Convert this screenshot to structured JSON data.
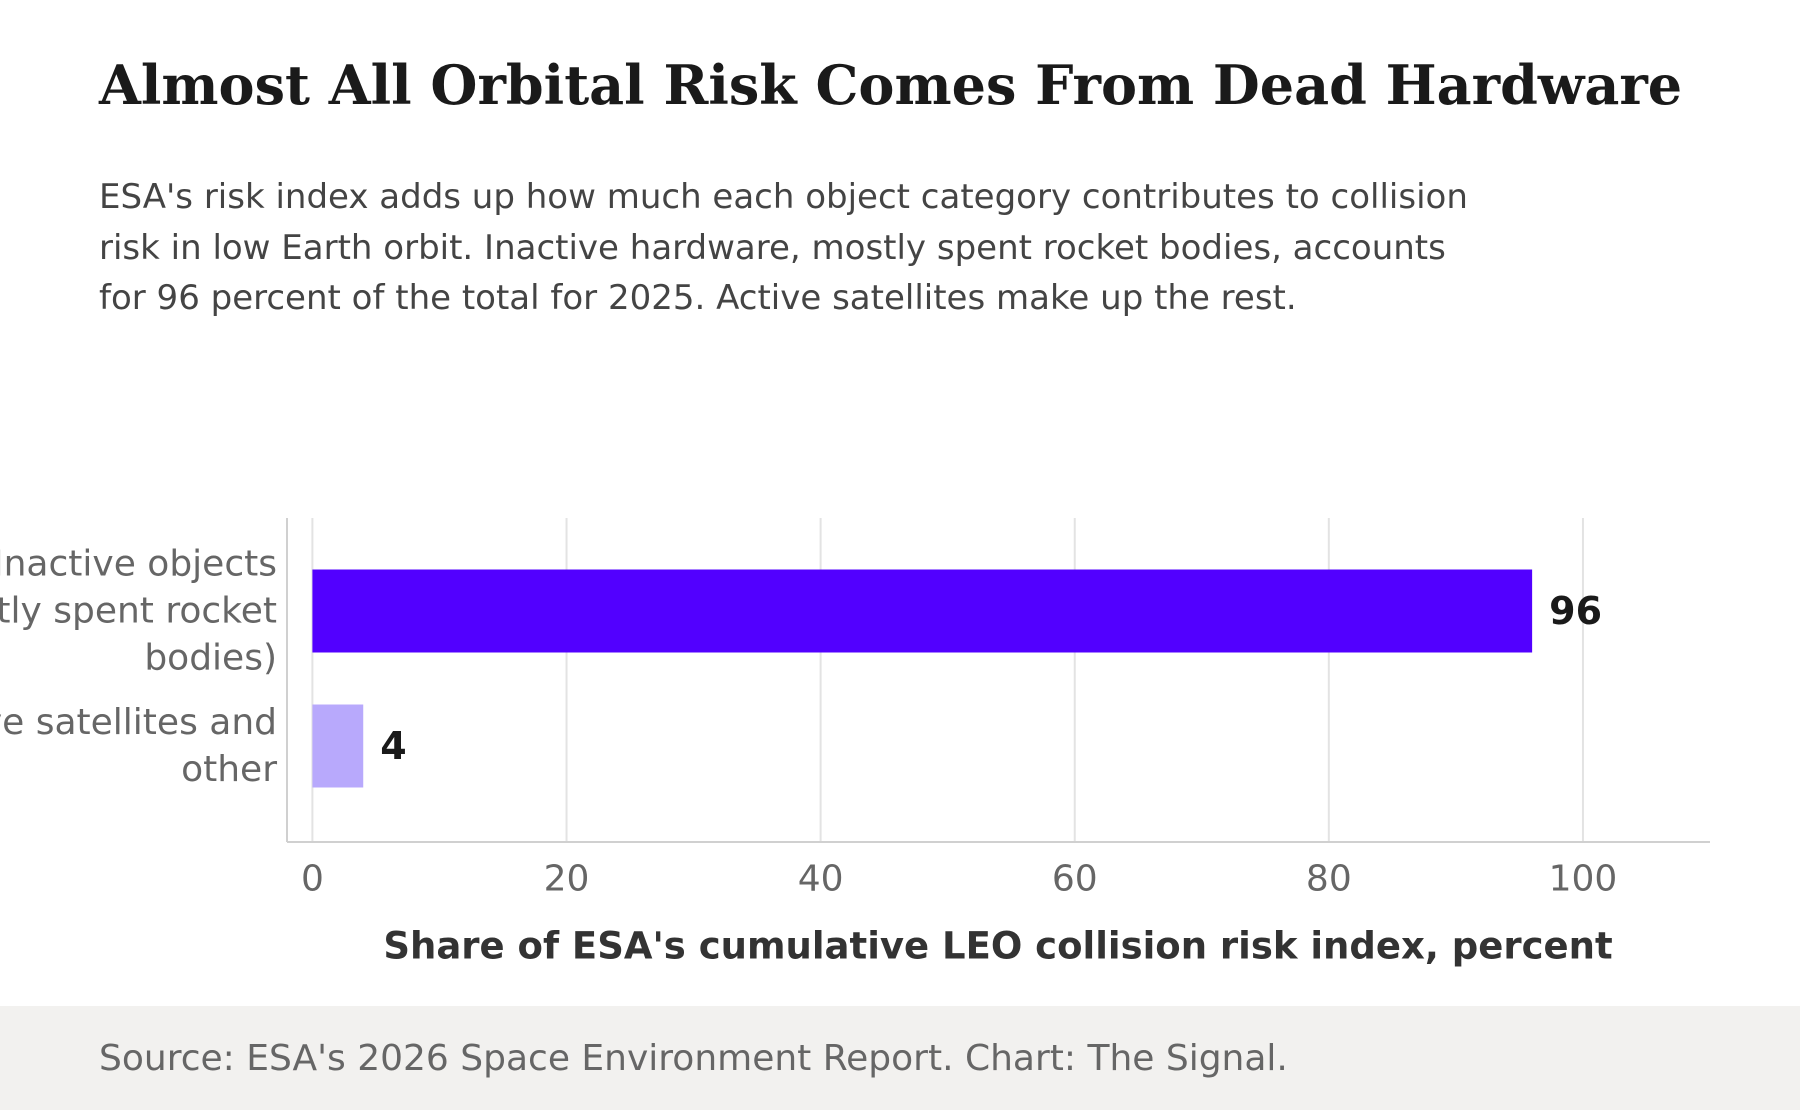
{
  "title": "Almost All Orbital Risk Comes From Dead Hardware",
  "subtitle": "ESA's risk index adds up how much each object category contributes to collision risk in low Earth orbit. Inactive hardware, mostly spent rocket bodies, accounts for 96 percent of the total for 2025. Active satellites make up the rest.",
  "source": "Source: ESA's 2026 Space Environment Report. Chart: The Signal.",
  "colors": {
    "primary_bar": "#5200ff",
    "secondary_bar": "#b8a9fc",
    "footer_bg": "#f2f1ef"
  },
  "chart_data": {
    "type": "bar",
    "orientation": "horizontal",
    "categories": [
      [
        "Inactive objects",
        "(mostly spent rocket",
        "bodies)"
      ],
      [
        "Active satellites and",
        "other"
      ]
    ],
    "values": [
      96,
      4
    ],
    "value_labels": [
      "96",
      "4"
    ],
    "xlabel": "Share of ESA's cumulative LEO collision risk index, percent",
    "xlim": [
      -2,
      110
    ],
    "xticks": [
      0,
      20,
      40,
      60,
      80,
      100
    ],
    "xtick_labels": [
      "0",
      "20",
      "40",
      "60",
      "80",
      "100"
    ],
    "grid": "vertical"
  }
}
